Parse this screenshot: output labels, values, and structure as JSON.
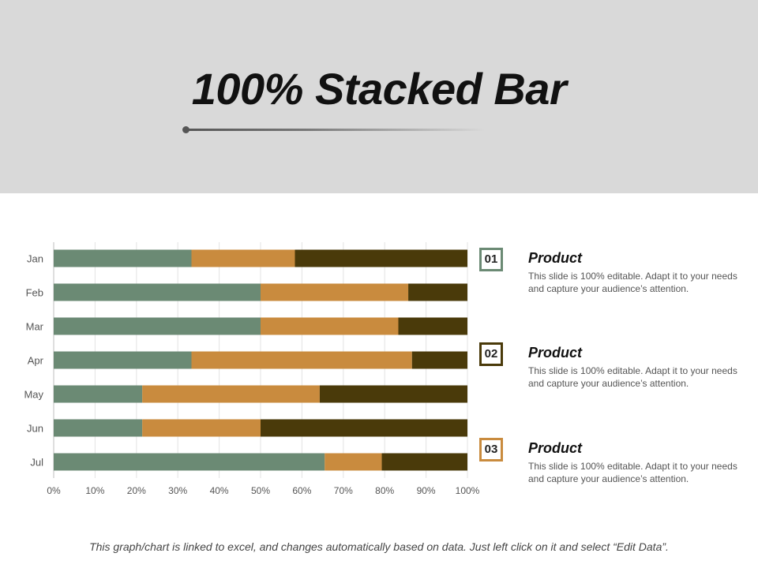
{
  "slide": {
    "title": "100% Stacked Bar",
    "footer": "This graph/chart is linked to excel, and changes automatically based on data. Just left click on it and select “Edit Data”."
  },
  "legend": [
    {
      "number": "01",
      "title": "Product",
      "description": "This slide is 100% editable. Adapt it to your needs and capture your audience’s attention.",
      "color": "#6b8a74"
    },
    {
      "number": "02",
      "title": "Product",
      "description": "This slide is 100% editable. Adapt it to your needs and capture your audience’s attention.",
      "color": "#4a3a0a"
    },
    {
      "number": "03",
      "title": "Product",
      "description": "This slide is 100% editable. Adapt it to your needs and capture your audience’s attention.",
      "color": "#c98b3e"
    }
  ],
  "chart_data": {
    "type": "bar",
    "orientation": "horizontal",
    "stacked": "percent",
    "categories": [
      "Jan",
      "Feb",
      "Mar",
      "Apr",
      "May",
      "Jun",
      "Jul"
    ],
    "series": [
      {
        "values": [
          33.3,
          50,
          50,
          33.3,
          21.4,
          21.4,
          65.5
        ],
        "color": "#6b8a74"
      },
      {
        "values": [
          25,
          35.7,
          33.3,
          53.3,
          42.9,
          28.6,
          13.8
        ],
        "color": "#c98b3e"
      },
      {
        "values": [
          41.7,
          14.3,
          16.7,
          13.4,
          35.7,
          50,
          20.7
        ],
        "color": "#4a3a0a"
      }
    ],
    "xticks": [
      "0%",
      "10%",
      "20%",
      "30%",
      "40%",
      "50%",
      "60%",
      "70%",
      "80%",
      "90%",
      "100%"
    ],
    "xlim": [
      0,
      100
    ],
    "grid": true
  }
}
